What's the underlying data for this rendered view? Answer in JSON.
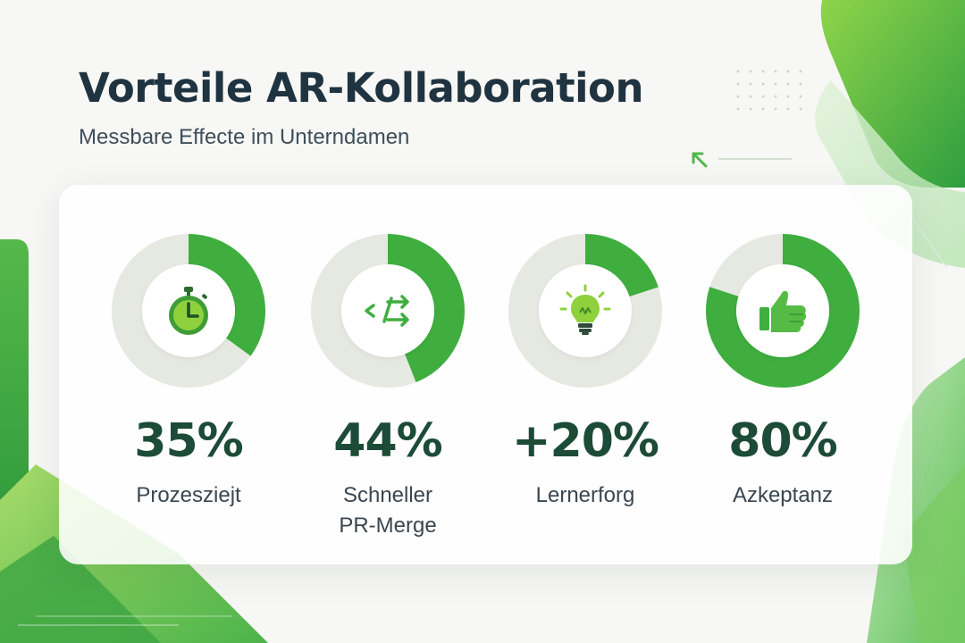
{
  "title": "Vorteile AR-Kollaboration",
  "subtitle": "Messbare Effecte im Unterndamen",
  "colors": {
    "accent": "#3fae3f",
    "accent_light": "#8ed13c",
    "ring_track": "#e6e9e2",
    "value_text": "#1c4b38",
    "title_text": "#1f3340"
  },
  "chart_data": {
    "type": "pie",
    "series": [
      {
        "value_label": "35%",
        "label": "Prozesziejt",
        "percent": 35,
        "icon": "stopwatch-icon"
      },
      {
        "value_label": "44%",
        "label": "Schneller\nPR-Merge",
        "percent": 44,
        "icon": "code-arrows-icon"
      },
      {
        "value_label": "+20%",
        "label": "Lernerforg",
        "percent": 20,
        "icon": "lightbulb-icon"
      },
      {
        "value_label": "80%",
        "label": "Azkeptanz",
        "percent": 80,
        "icon": "thumbs-up-icon"
      }
    ]
  }
}
